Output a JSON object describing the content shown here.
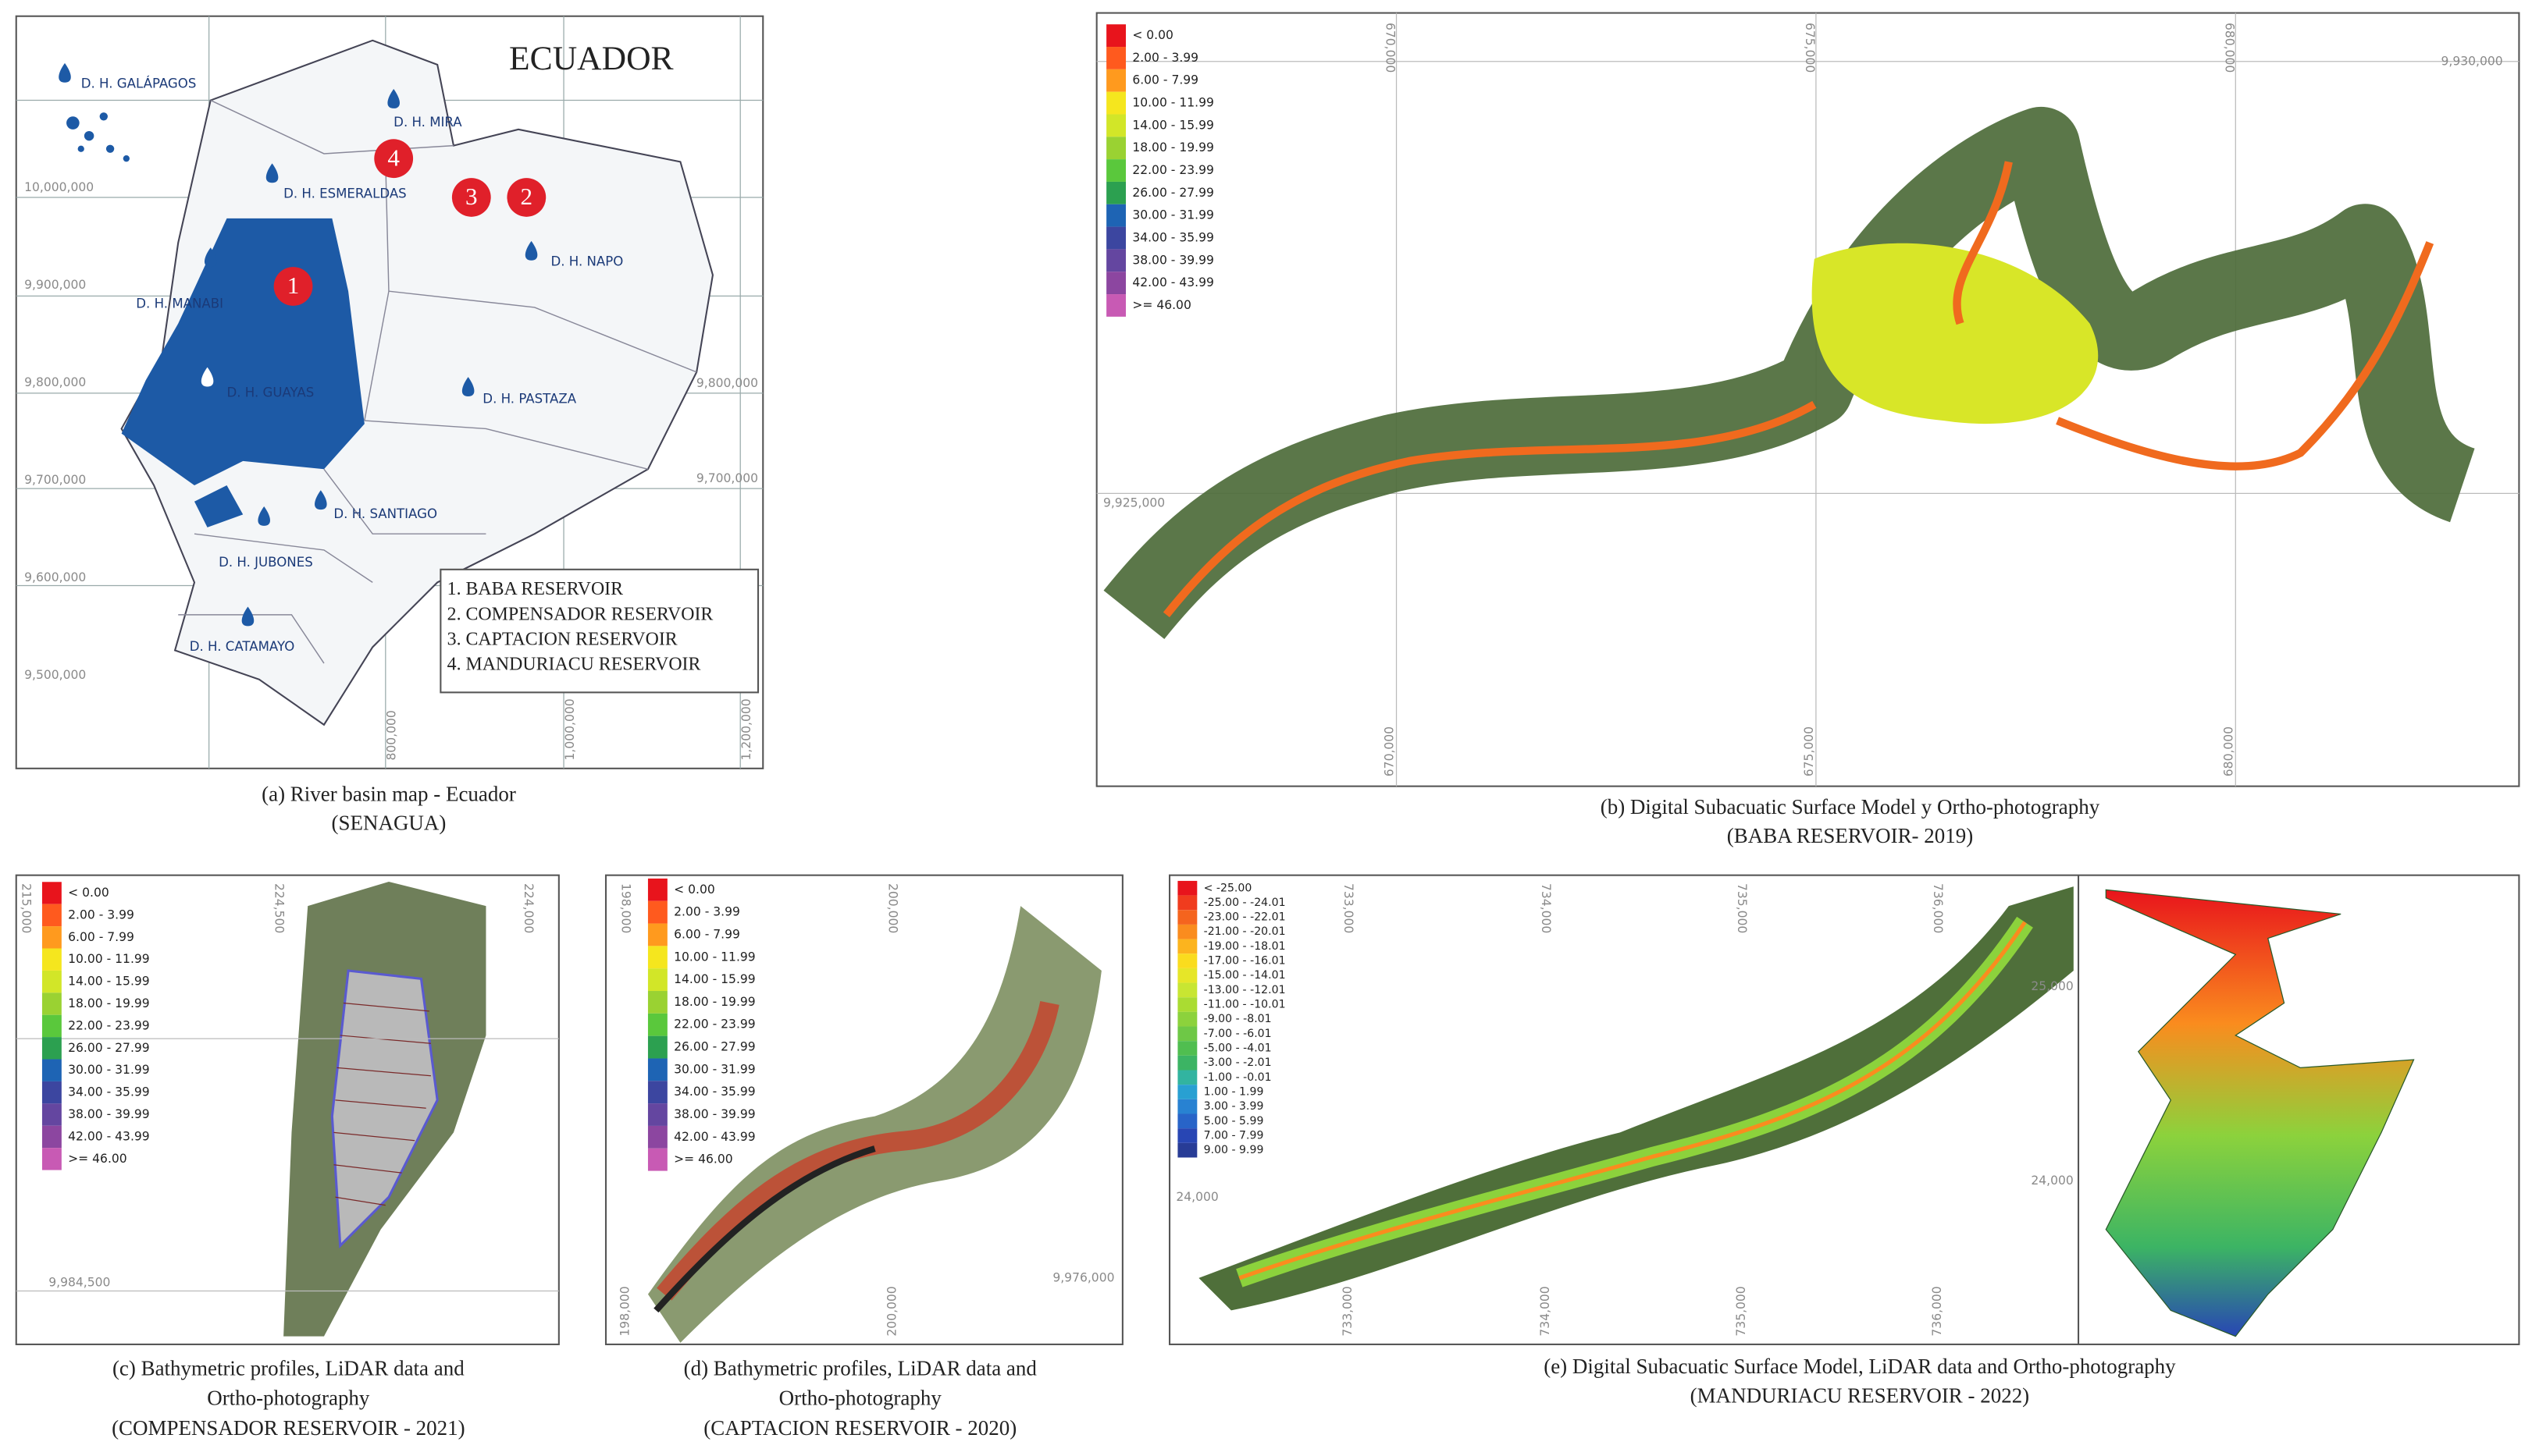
{
  "panel_a": {
    "title": "ECUADOR",
    "basins": [
      "D. H. GALÁPAGOS",
      "D. H. MIRA",
      "D. H. ESMERALDAS",
      "D. H. NAPO",
      "D. H. MANABI",
      "D. H. GUAYAS",
      "D. H. PASTAZA",
      "D. H. SANTIAGO",
      "D. H. JUBONES",
      "D. H. CATAMAYO"
    ],
    "reservoir_markers": [
      "1",
      "2",
      "3",
      "4"
    ],
    "reservoir_key": [
      "1. BABA RESERVOIR",
      "2. COMPENSADOR RESERVOIR",
      "3. CAPTACION RESERVOIR",
      "4. MANDURIACU RESERVOIR"
    ],
    "coords_left": [
      "10,000,000",
      "9,900,000",
      "9,800,000",
      "9,700,000",
      "9,600,000",
      "9,500,000"
    ],
    "coords_right": [
      "9,800,000",
      "9,700,000"
    ],
    "coords_bottom": [
      "800,000",
      "1,000,000",
      "1,200,000"
    ],
    "caption": [
      "(a) River basin map - Ecuador",
      "(SENAGUA)"
    ]
  },
  "panel_b": {
    "legend": [
      "< 0.00",
      "2.00 - 3.99",
      "6.00 - 7.99",
      "10.00 - 11.99",
      "14.00 - 15.99",
      "18.00 - 19.99",
      "22.00 - 23.99",
      "26.00 - 27.99",
      "30.00 - 31.99",
      "34.00 - 35.99",
      "38.00 - 39.99",
      "42.00 - 43.99",
      ">= 46.00"
    ],
    "colors": [
      "#e8141c",
      "#ff5a1e",
      "#ff9a1e",
      "#f5e61e",
      "#d2e628",
      "#9ad232",
      "#5ac83c",
      "#2ca050",
      "#1e64b4",
      "#3c46a0",
      "#6446a0",
      "#8c46a0",
      "#c85ab4"
    ],
    "coords_x": [
      "670,000",
      "675,000",
      "680,000"
    ],
    "coords_y": [
      "9,930,000",
      "9,925,000"
    ],
    "caption": [
      "(b) Digital Subacuatic Surface Model y Ortho-photography",
      "(BABA RESERVOIR- 2019)"
    ]
  },
  "panel_c": {
    "legend": [
      "< 0.00",
      "2.00 - 3.99",
      "6.00 - 7.99",
      "10.00 - 11.99",
      "14.00 - 15.99",
      "18.00 - 19.99",
      "22.00 - 23.99",
      "26.00 - 27.99",
      "30.00 - 31.99",
      "34.00 - 35.99",
      "38.00 - 39.99",
      "42.00 - 43.99",
      ">= 46.00"
    ],
    "colors": [
      "#e8141c",
      "#ff5a1e",
      "#ff9a1e",
      "#f5e61e",
      "#d2e628",
      "#9ad232",
      "#5ac83c",
      "#2ca050",
      "#1e64b4",
      "#3c46a0",
      "#6446a0",
      "#8c46a0",
      "#c85ab4"
    ],
    "coords_x": [
      "215,000",
      "224,500",
      "224,000"
    ],
    "coords_y": [
      "9,984,500"
    ],
    "caption": [
      "(c) Bathymetric profiles, LiDAR data and",
      "Ortho-photography",
      "(COMPENSADOR RESERVOIR - 2021)"
    ]
  },
  "panel_d": {
    "legend": [
      "< 0.00",
      "2.00 - 3.99",
      "6.00 - 7.99",
      "10.00 - 11.99",
      "14.00 - 15.99",
      "18.00 - 19.99",
      "22.00 - 23.99",
      "26.00 - 27.99",
      "30.00 - 31.99",
      "34.00 - 35.99",
      "38.00 - 39.99",
      "42.00 - 43.99",
      ">= 46.00"
    ],
    "colors": [
      "#e8141c",
      "#ff5a1e",
      "#ff9a1e",
      "#f5e61e",
      "#d2e628",
      "#9ad232",
      "#5ac83c",
      "#2ca050",
      "#1e64b4",
      "#3c46a0",
      "#6446a0",
      "#8c46a0",
      "#c85ab4"
    ],
    "coords_x": [
      "198,000",
      "200,000"
    ],
    "coords_y": [
      "9,976,000"
    ],
    "caption": [
      "(d) Bathymetric profiles, LiDAR data and",
      "Ortho-photography",
      "(CAPTACION RESERVOIR - 2020)"
    ]
  },
  "panel_e": {
    "legend": [
      "< -25.00",
      "-25.00 - -24.01",
      "-23.00 - -22.01",
      "-21.00 - -20.01",
      "-19.00 - -18.01",
      "-17.00 - -16.01",
      "-15.00 - -14.01",
      "-13.00 - -12.01",
      "-11.00 - -10.01",
      "-9.00 - -8.01",
      "-7.00 - -6.01",
      "-5.00 - -4.01",
      "-3.00 - -2.01",
      "-1.00 - -0.01",
      "1.00 - 1.99",
      "3.00 - 3.99",
      "5.00 - 5.99",
      "7.00 - 7.99",
      "9.00 - 9.99"
    ],
    "colors": [
      "#e8141c",
      "#f03c1e",
      "#f5641e",
      "#fa8c1e",
      "#fcb41e",
      "#fadc1e",
      "#e6e628",
      "#c8e632",
      "#aadc32",
      "#8cd23c",
      "#6ec846",
      "#50be50",
      "#3cb464",
      "#32b4a0",
      "#28a0d2",
      "#2882d2",
      "#2864c8",
      "#2846b4",
      "#283c96"
    ],
    "coords_x": [
      "733,000",
      "734,000",
      "735,000",
      "736,000"
    ],
    "coords_y": [
      "25,000",
      "24,000"
    ],
    "caption": [
      "(e) Digital Subacuatic Surface Model, LiDAR data and Ortho-photography",
      "(MANDURIACU RESERVOIR - 2022)"
    ]
  }
}
